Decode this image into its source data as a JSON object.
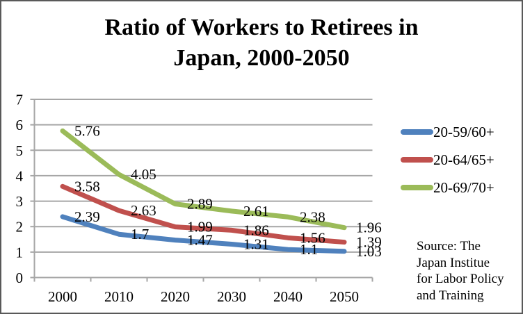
{
  "title_lines": [
    "Ratio of Workers to Retirees in",
    "Japan, 2000-2050"
  ],
  "chart_data": {
    "type": "line",
    "title": "Ratio of Workers to Retirees in Japan, 2000-2050",
    "categories": [
      "2000",
      "2010",
      "2020",
      "2030",
      "2040",
      "2050"
    ],
    "series": [
      {
        "name": "20-59/60+",
        "color": "#4F81BD",
        "values": [
          2.39,
          1.7,
          1.47,
          1.31,
          1.1,
          1.03
        ],
        "labels": [
          "2.39",
          "1.7",
          "1.47",
          "1.31",
          "1.1",
          "1.03"
        ]
      },
      {
        "name": "20-64/65+",
        "color": "#C0504D",
        "values": [
          3.58,
          2.63,
          1.99,
          1.86,
          1.56,
          1.39
        ],
        "labels": [
          "3.58",
          "2.63",
          "1.99",
          "1.86",
          "1.56",
          "1.39"
        ]
      },
      {
        "name": "20-69/70+",
        "color": "#9BBB59",
        "values": [
          5.76,
          4.05,
          2.89,
          2.61,
          2.38,
          1.96
        ],
        "labels": [
          "5.76",
          "4.05",
          "2.89",
          "2.61",
          "2.38",
          "1.96"
        ]
      }
    ],
    "xlabel": "",
    "ylabel": "",
    "ylim": [
      0,
      7
    ],
    "yticks": [
      "0",
      "1",
      "2",
      "3",
      "4",
      "5",
      "6",
      "7"
    ],
    "grid": true,
    "legend_position": "right",
    "data_labels": true
  },
  "source_lines": [
    "Source: The",
    "Japan Institue",
    "for Labor Policy",
    "and Training"
  ],
  "colors": {
    "grid": "#A6A6A6",
    "axis": "#A6A6A6",
    "text": "#000000",
    "border": "#595959",
    "background": "#FFFFFF"
  }
}
